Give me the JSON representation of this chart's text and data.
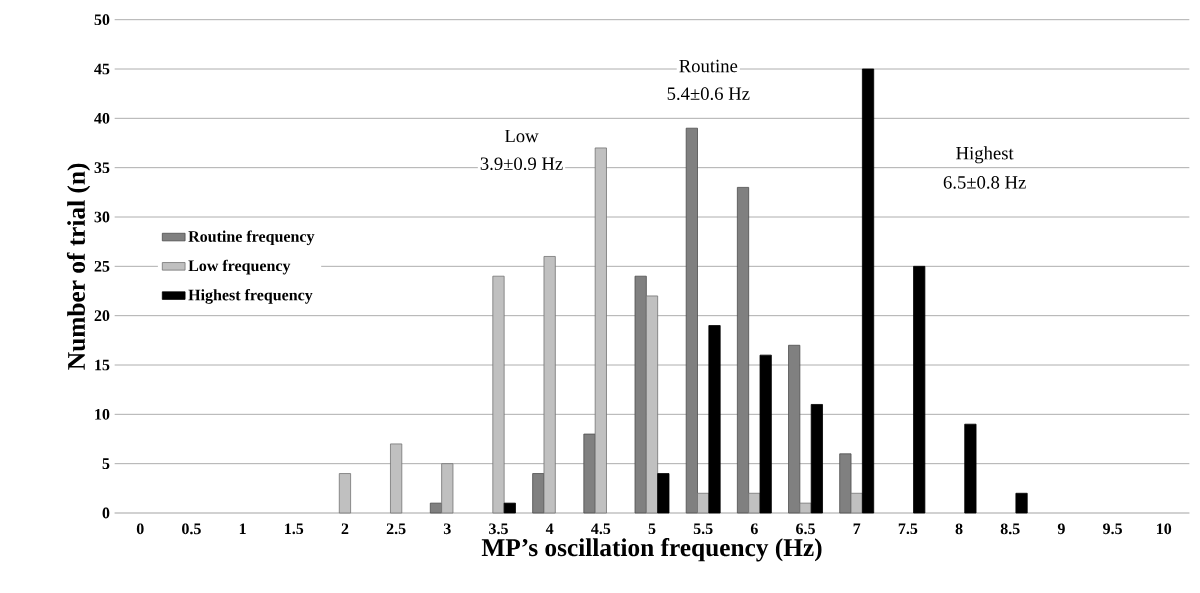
{
  "chart_data": {
    "type": "bar",
    "xlabel": "MP’s oscillation frequency (Hz)",
    "ylabel": "Number of trial (n)",
    "categories": [
      "0",
      "0.5",
      "1",
      "1.5",
      "2",
      "2.5",
      "3",
      "3.5",
      "4",
      "4.5",
      "5",
      "5.5",
      "6",
      "6.5",
      "7",
      "7.5",
      "8",
      "8.5",
      "9",
      "9.5",
      "10"
    ],
    "series": [
      {
        "name": "Routine frequency",
        "color": "#808080",
        "values": [
          0,
          0,
          0,
          0,
          0,
          0,
          1,
          0,
          4,
          8,
          24,
          39,
          33,
          17,
          6,
          0,
          0,
          0,
          0,
          0,
          0
        ]
      },
      {
        "name": "Low frequency",
        "color": "#c0c0c0",
        "values": [
          0,
          0,
          0,
          0,
          4,
          7,
          5,
          24,
          26,
          37,
          22,
          2,
          2,
          1,
          2,
          0,
          0,
          0,
          0,
          0,
          0
        ]
      },
      {
        "name": "Highest frequency",
        "color": "#000000",
        "values": [
          0,
          0,
          0,
          0,
          0,
          0,
          0,
          1,
          0,
          0,
          4,
          19,
          16,
          11,
          45,
          25,
          9,
          2,
          0,
          0,
          0
        ]
      }
    ],
    "ylim": [
      0,
      50
    ],
    "yticks": [
      0,
      5,
      10,
      15,
      20,
      25,
      30,
      35,
      40,
      45,
      50
    ],
    "annotations": [
      "Low",
      "3.9±0.9 Hz",
      "Routine",
      "5.4±0.6 Hz",
      "Highest",
      "6.5±0.8 Hz"
    ],
    "grid": "y",
    "legend": "left"
  }
}
